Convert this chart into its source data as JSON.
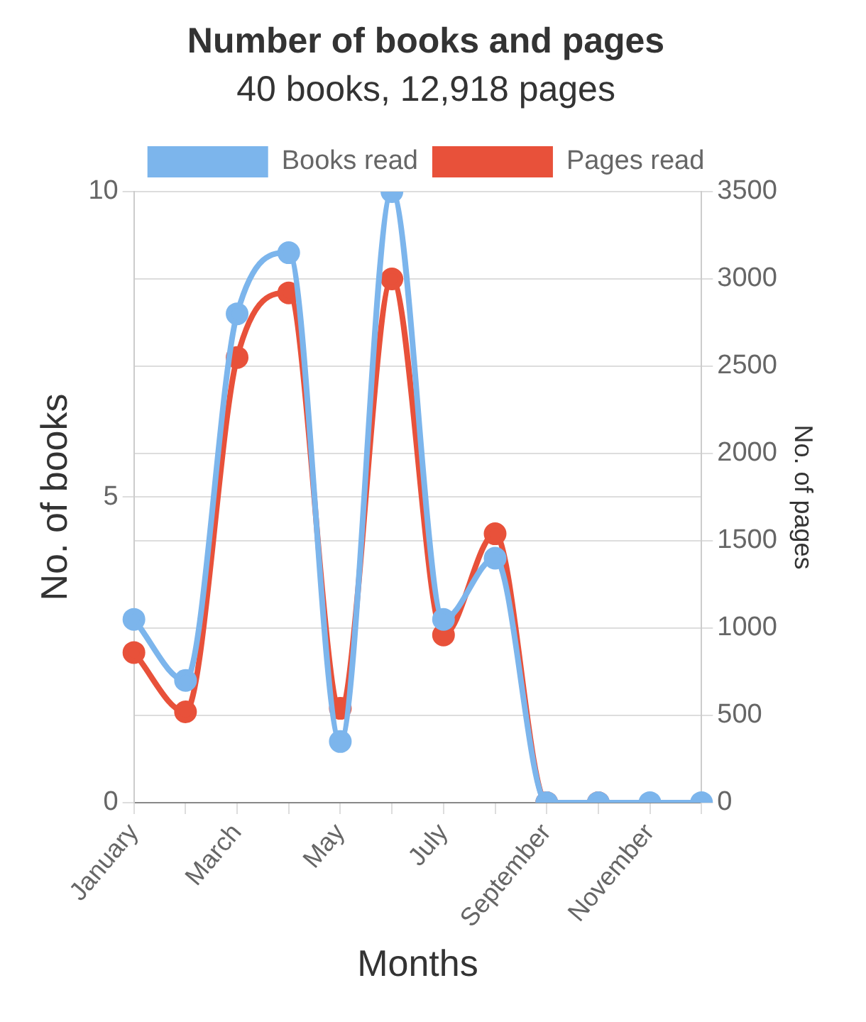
{
  "chart_data": {
    "type": "line",
    "title": "Number of books and pages",
    "subtitle": "40 books, 12,918 pages",
    "xlabel": "Months",
    "ylabel": "No. of books",
    "y2label": "No. of pages",
    "categories": [
      "January",
      null,
      "March",
      null,
      "May",
      null,
      "July",
      null,
      "September",
      null,
      "November",
      null
    ],
    "series": [
      {
        "name": "Books read",
        "color": "#7cb5ec",
        "values": [
          3,
          2,
          8,
          9,
          1,
          10,
          3,
          4,
          0,
          0,
          0,
          0
        ]
      },
      {
        "name": "Pages read",
        "color": "#e8513a",
        "axis": "y2",
        "values": [
          860,
          520,
          2550,
          2920,
          540,
          3000,
          960,
          1540,
          0,
          0,
          null,
          null
        ]
      }
    ],
    "ylim": [
      0,
      10
    ],
    "yticks": [
      0,
      5,
      10
    ],
    "y2lim": [
      0,
      3500
    ],
    "y2ticks": [
      0,
      500,
      1000,
      1500,
      2000,
      2500,
      3000,
      3500
    ],
    "grid": "y",
    "legend": "top",
    "marker": "circle",
    "line_style": "solid"
  }
}
